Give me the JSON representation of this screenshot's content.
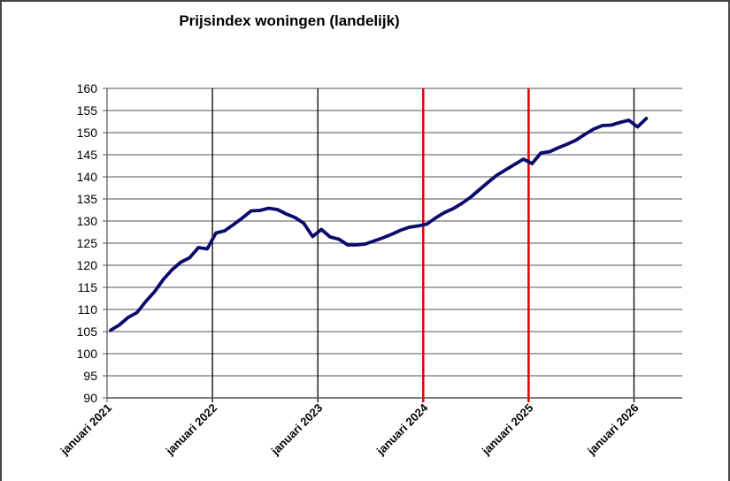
{
  "chart_data": {
    "type": "line",
    "title": "Prijsindex woningen (landelijk)",
    "xlabel": "",
    "ylabel": "",
    "ylim": [
      90,
      160
    ],
    "yticks": [
      90,
      95,
      100,
      105,
      110,
      115,
      120,
      125,
      130,
      135,
      140,
      145,
      150,
      155,
      160
    ],
    "grid": {
      "horizontal": true,
      "vertical": "yearly"
    },
    "legend": null,
    "xtick_labels": [
      "januari 2021",
      "januari 2022",
      "januari 2023",
      "januari 2024",
      "januari 2025",
      "januari 2026"
    ],
    "vertical_markers": [
      {
        "label": "januari 2021",
        "color": "#000000"
      },
      {
        "label": "januari 2022",
        "color": "#000000"
      },
      {
        "label": "januari 2023",
        "color": "#000000"
      },
      {
        "label": "januari 2024",
        "color": "#e00000"
      },
      {
        "label": "januari 2025",
        "color": "#e00000"
      },
      {
        "label": "januari 2026",
        "color": "#000000"
      }
    ],
    "series": [
      {
        "name": "Prijsindex woningen",
        "color": "#0a0a6e",
        "x": [
          "2021-01",
          "2021-02",
          "2021-03",
          "2021-04",
          "2021-05",
          "2021-06",
          "2021-07",
          "2021-08",
          "2021-09",
          "2021-10",
          "2021-11",
          "2021-12",
          "2022-01",
          "2022-02",
          "2022-03",
          "2022-04",
          "2022-05",
          "2022-06",
          "2022-07",
          "2022-08",
          "2022-09",
          "2022-10",
          "2022-11",
          "2022-12",
          "2023-01",
          "2023-02",
          "2023-03",
          "2023-04",
          "2023-05",
          "2023-06",
          "2023-07",
          "2023-08",
          "2023-09",
          "2023-10",
          "2023-11",
          "2023-12",
          "2024-01",
          "2024-02",
          "2024-03",
          "2024-04",
          "2024-05",
          "2024-06",
          "2024-07",
          "2024-08",
          "2024-09",
          "2024-10",
          "2024-11",
          "2024-12",
          "2025-01",
          "2025-02",
          "2025-03",
          "2025-04",
          "2025-05",
          "2025-06",
          "2025-07",
          "2025-08",
          "2025-09",
          "2025-10",
          "2025-11",
          "2025-12",
          "2026-01",
          "2026-02"
        ],
        "values": [
          105.3,
          106.5,
          108.2,
          109.3,
          111.8,
          114.0,
          116.8,
          119.0,
          120.7,
          121.7,
          124.0,
          123.7,
          127.3,
          127.8,
          129.2,
          130.7,
          132.3,
          132.4,
          132.9,
          132.6,
          131.6,
          130.8,
          129.5,
          126.5,
          128.1,
          126.4,
          125.9,
          124.6,
          124.6,
          124.8,
          125.5,
          126.2,
          127.0,
          127.9,
          128.6,
          128.9,
          129.3,
          130.7,
          131.9,
          132.8,
          134.0,
          135.4,
          137.1,
          138.8,
          140.4,
          141.6,
          142.8,
          144.0,
          143.0,
          145.4,
          145.7,
          146.6,
          147.4,
          148.3,
          149.6,
          150.8,
          151.6,
          151.7,
          152.3,
          152.8,
          151.3,
          153.2
        ]
      }
    ]
  }
}
